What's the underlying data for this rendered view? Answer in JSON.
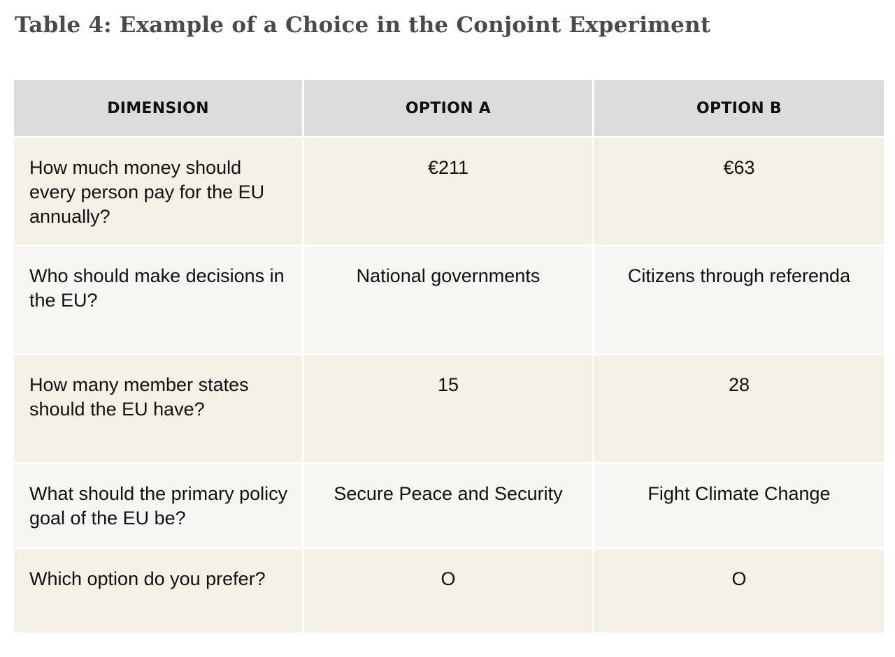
{
  "title": "Table 4: Example of a Choice in the Conjoint Experiment",
  "table": {
    "headers": [
      "DIMENSION",
      "OPTION A",
      "OPTION B"
    ],
    "rows": [
      {
        "dimension": "How much money should every person pay for the EU annually?",
        "option_a": "€211",
        "option_b": "€63"
      },
      {
        "dimension": "Who should make decisions in the EU?",
        "option_a": "National governments",
        "option_b": "Citizens through referenda"
      },
      {
        "dimension": "How many member states should the EU have?",
        "option_a": "15",
        "option_b": "28"
      },
      {
        "dimension": "What should the primary policy goal of the EU be?",
        "option_a": "Secure Peace and Security",
        "option_b": "Fight Climate Change"
      }
    ],
    "preference_row": {
      "question": "Which option do you prefer?",
      "option_a_mark": "O",
      "option_b_mark": "O"
    }
  },
  "colors": {
    "header_bg": "#dcdcdc",
    "row_odd_bg": "#f3f0e6",
    "row_even_bg": "#f7f6f2",
    "title_color": "#4a4a4a"
  }
}
